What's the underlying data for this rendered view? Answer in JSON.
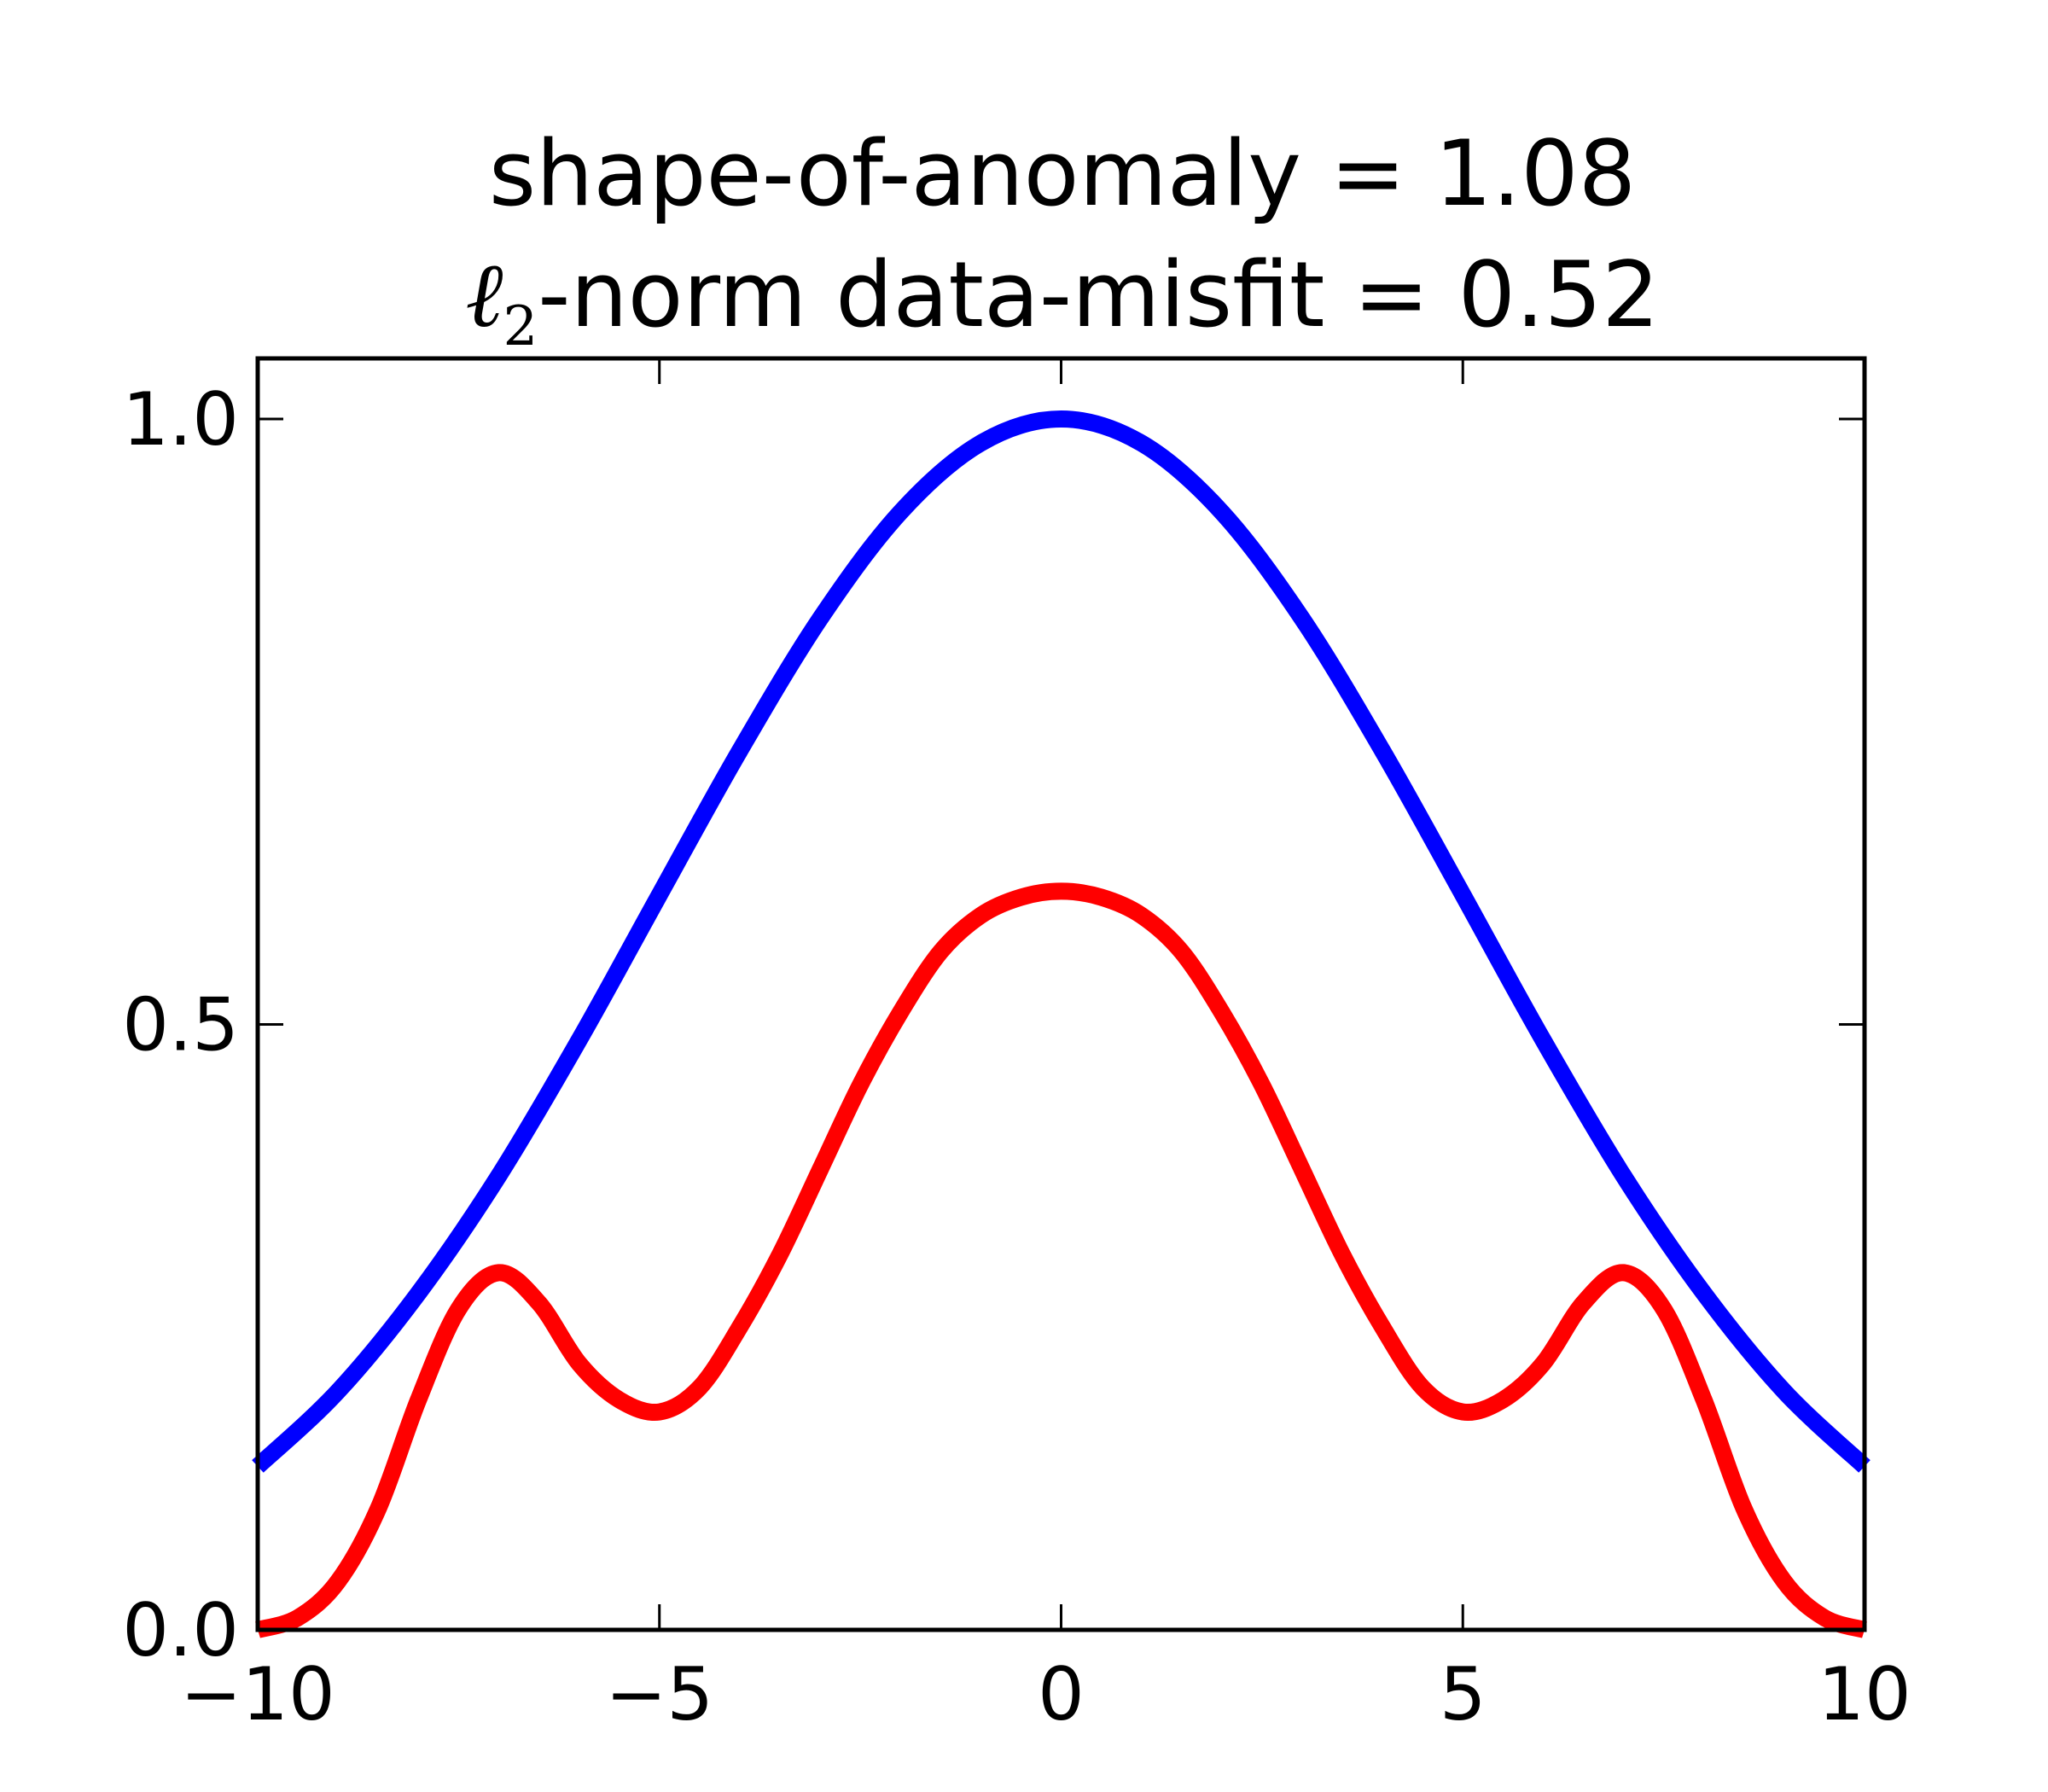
{
  "chart_data": {
    "type": "line",
    "title_line1": "shape-of-anomaly = 1.08",
    "title_line2_symbol": "ℓ",
    "title_line2_subscript": "2",
    "title_line2_text": "-norm data-misfit = 0.52",
    "xlabel": "",
    "ylabel": "",
    "xlim": [
      -10,
      10
    ],
    "ylim": [
      0,
      1.05
    ],
    "x_ticks": [
      {
        "value": -10,
        "label": "−10"
      },
      {
        "value": -5,
        "label": "−5"
      },
      {
        "value": 0,
        "label": "0"
      },
      {
        "value": 5,
        "label": "5"
      },
      {
        "value": 10,
        "label": "10"
      }
    ],
    "y_ticks": [
      {
        "value": 0,
        "label": "0.0"
      },
      {
        "value": 0.5,
        "label": "0.5"
      },
      {
        "value": 1,
        "label": "1.0"
      }
    ],
    "grid": false,
    "series": [
      {
        "color": "#0000ff",
        "x": [
          -10,
          -9,
          -8,
          -7,
          -6,
          -5,
          -4,
          -3,
          -2,
          -1,
          0,
          1,
          2,
          3,
          4,
          5,
          6,
          7,
          8,
          9,
          10
        ],
        "y": [
          0.135,
          0.197,
          0.278,
          0.375,
          0.487,
          0.607,
          0.726,
          0.835,
          0.923,
          0.98,
          1.0,
          0.98,
          0.923,
          0.835,
          0.726,
          0.607,
          0.487,
          0.375,
          0.278,
          0.197,
          0.135
        ]
      },
      {
        "color": "#ff0000",
        "x": [
          -10,
          -9.5,
          -9,
          -8.5,
          -8,
          -7.5,
          -7,
          -6.5,
          -6,
          -5.5,
          -5,
          -4.5,
          -4,
          -3.5,
          -3,
          -2.5,
          -2,
          -1.5,
          -1,
          -0.5,
          0,
          0.5,
          1,
          1.5,
          2,
          2.5,
          3,
          3.5,
          4,
          4.5,
          5,
          5.5,
          6,
          6.5,
          7,
          7.5,
          8,
          8.5,
          9,
          9.5,
          10
        ],
        "y": [
          0.0,
          0.01,
          0.04,
          0.1,
          0.19,
          0.265,
          0.295,
          0.27,
          0.22,
          0.19,
          0.18,
          0.2,
          0.25,
          0.31,
          0.38,
          0.45,
          0.51,
          0.56,
          0.59,
          0.605,
          0.61,
          0.605,
          0.59,
          0.56,
          0.51,
          0.45,
          0.38,
          0.31,
          0.25,
          0.2,
          0.18,
          0.19,
          0.22,
          0.27,
          0.295,
          0.265,
          0.19,
          0.1,
          0.04,
          0.01,
          0.0
        ]
      }
    ]
  }
}
